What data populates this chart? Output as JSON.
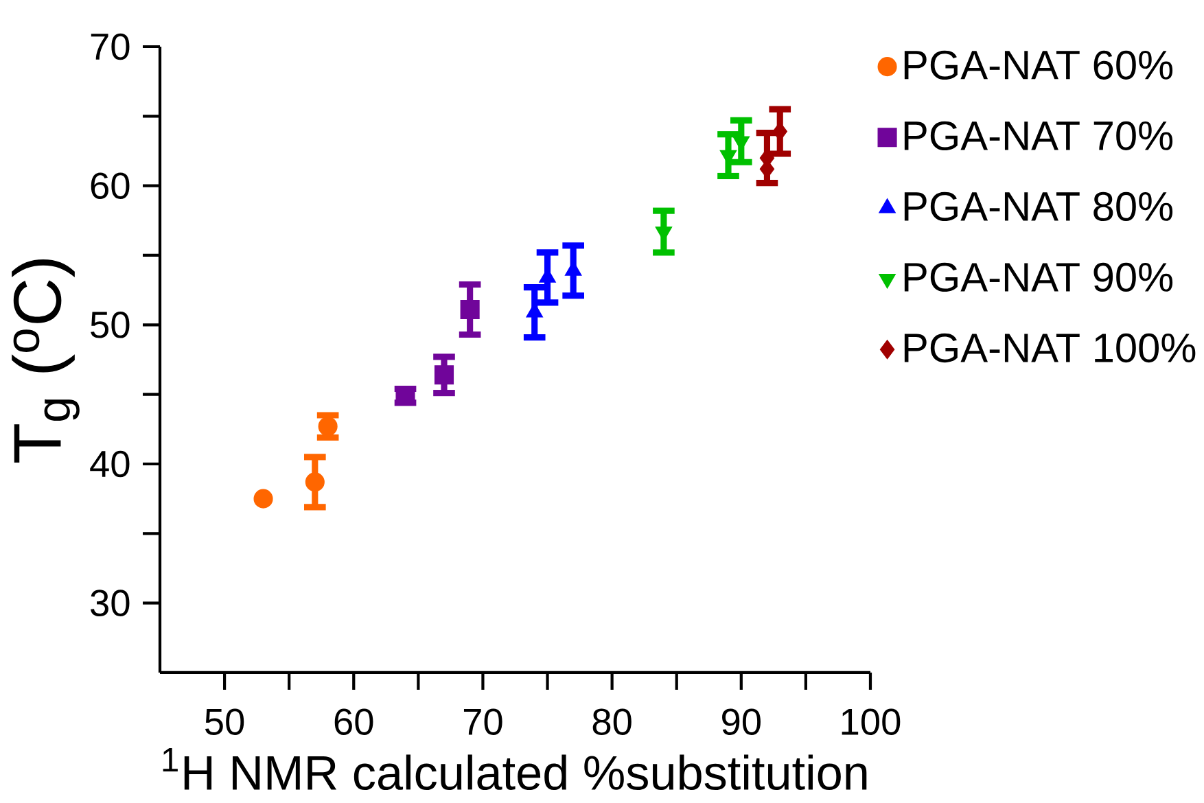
{
  "chart_data": {
    "type": "scatter",
    "xlabel": "$^{1}$H NMR calculated %substitution",
    "ylabel": "T$_{g}$ ($^{o}$C)",
    "xlim": [
      45,
      100
    ],
    "ylim": [
      25,
      70
    ],
    "xticks": [
      50,
      60,
      70,
      80,
      90,
      100
    ],
    "yticks": [
      30,
      40,
      50,
      60,
      70
    ],
    "legend": "right",
    "grid": false,
    "series": [
      {
        "name": "PGA-NAT 60%",
        "color": "#ff6600",
        "marker": "circle",
        "x": [
          53,
          57,
          58
        ],
        "values": [
          37.5,
          38.7,
          42.7
        ],
        "errors": [
          null,
          1.8,
          0.8
        ]
      },
      {
        "name": "PGA-NAT 70%",
        "color": "#70059a",
        "marker": "square",
        "x": [
          64,
          67,
          69
        ],
        "values": [
          44.9,
          46.4,
          51.1
        ],
        "errors": [
          0.5,
          1.3,
          1.8
        ]
      },
      {
        "name": "PGA-NAT 80%",
        "color": "#0000ff",
        "marker": "triangle",
        "x": [
          74,
          75,
          77
        ],
        "values": [
          50.9,
          53.4,
          53.9
        ],
        "errors": [
          1.8,
          1.8,
          1.8
        ]
      },
      {
        "name": "PGA-NAT 90%",
        "color": "#00c000",
        "marker": "triangle-down",
        "x": [
          84,
          89,
          90
        ],
        "values": [
          56.7,
          62.2,
          63.2
        ],
        "errors": [
          1.5,
          1.5,
          1.5
        ]
      },
      {
        "name": "PGA-NAT 100%",
        "color": "#a00000",
        "marker": "diamond",
        "x": [
          92,
          92,
          93
        ],
        "values": [
          62.0,
          61.2,
          63.9
        ],
        "errors": [
          1.8,
          null,
          1.6
        ]
      }
    ]
  }
}
